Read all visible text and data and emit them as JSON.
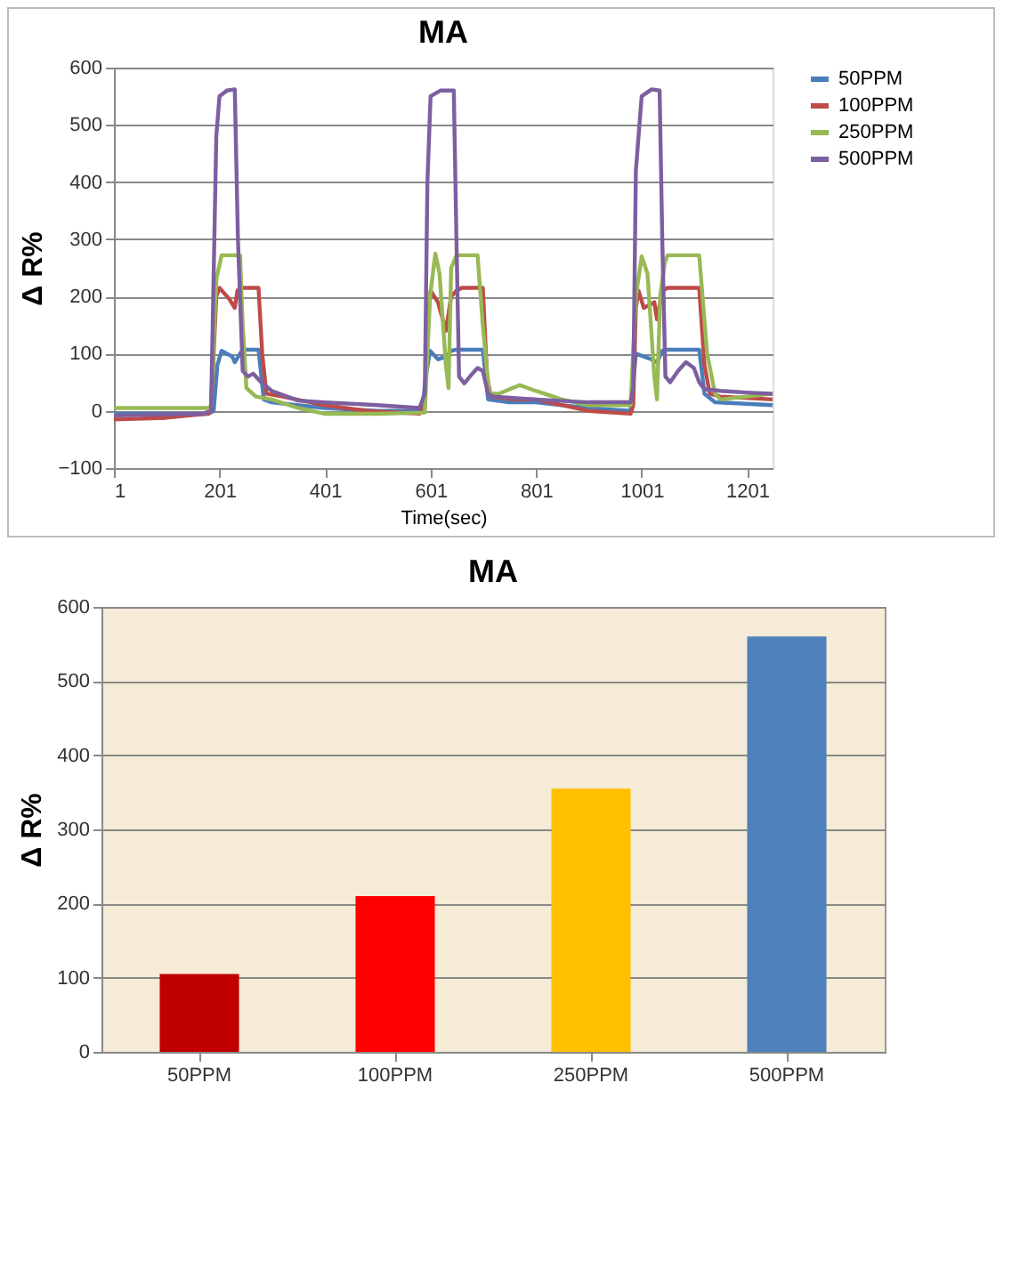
{
  "chart_data": [
    {
      "type": "line",
      "title": "MA",
      "xlabel": "Time(sec)",
      "ylabel": "Δ R%",
      "xlim": [
        1,
        1249
      ],
      "xticks": [
        1,
        201,
        401,
        601,
        801,
        1001,
        1201
      ],
      "ylim": [
        -100,
        600
      ],
      "yticks": [
        -100,
        0,
        100,
        200,
        300,
        400,
        500,
        600
      ],
      "grid": "y",
      "legend": "right",
      "marker": "none",
      "series": [
        {
          "name": "50PPM",
          "color": "#4a7ebb",
          "x": [
            1,
            180,
            190,
            197,
            205,
            225,
            230,
            240,
            245,
            275,
            285,
            300,
            400,
            500,
            585,
            592,
            600,
            615,
            630,
            640,
            650,
            700,
            710,
            750,
            800,
            900,
            980,
            990,
            1005,
            1020,
            1030,
            1040,
            1050,
            1110,
            1120,
            1140,
            1249
          ],
          "values": [
            -5,
            -5,
            0,
            80,
            105,
            95,
            85,
            100,
            107,
            107,
            20,
            15,
            5,
            0,
            0,
            60,
            105,
            90,
            95,
            105,
            107,
            107,
            20,
            15,
            15,
            5,
            0,
            100,
            95,
            90,
            85,
            105,
            107,
            107,
            30,
            15,
            10
          ]
        },
        {
          "name": "100PPM",
          "color": "#be4b48",
          "x": [
            1,
            100,
            180,
            185,
            195,
            201,
            220,
            230,
            235,
            240,
            275,
            282,
            290,
            320,
            400,
            480,
            580,
            590,
            595,
            601,
            615,
            630,
            640,
            650,
            660,
            700,
            708,
            715,
            760,
            800,
            900,
            980,
            985,
            990,
            995,
            1005,
            1025,
            1030,
            1040,
            1050,
            1110,
            1120,
            1130,
            1150,
            1249
          ],
          "values": [
            -15,
            -12,
            -5,
            0,
            200,
            215,
            195,
            180,
            210,
            215,
            215,
            100,
            30,
            25,
            10,
            0,
            -5,
            10,
            150,
            210,
            190,
            140,
            200,
            210,
            215,
            215,
            60,
            25,
            20,
            20,
            0,
            -5,
            10,
            180,
            210,
            180,
            190,
            160,
            210,
            215,
            215,
            80,
            30,
            25,
            20
          ]
        },
        {
          "name": "250PPM",
          "color": "#98b954",
          "x": [
            1,
            100,
            180,
            185,
            195,
            205,
            240,
            245,
            252,
            270,
            300,
            350,
            400,
            500,
            590,
            600,
            610,
            618,
            630,
            635,
            640,
            650,
            690,
            700,
            712,
            730,
            770,
            800,
            850,
            900,
            980,
            990,
            1001,
            1012,
            1025,
            1030,
            1036,
            1045,
            1050,
            1110,
            1125,
            1140,
            1150,
            1200,
            1249
          ],
          "values": [
            5,
            5,
            5,
            10,
            230,
            272,
            272,
            150,
            40,
            25,
            20,
            5,
            -5,
            -5,
            -3,
            200,
            275,
            240,
            80,
            40,
            250,
            272,
            272,
            150,
            30,
            30,
            45,
            35,
            20,
            10,
            10,
            200,
            270,
            240,
            60,
            20,
            200,
            260,
            272,
            272,
            100,
            30,
            20,
            25,
            30
          ]
        },
        {
          "name": "500PPM",
          "color": "#7d5fa0",
          "x": [
            1,
            170,
            185,
            195,
            201,
            215,
            230,
            236,
            245,
            255,
            265,
            280,
            300,
            350,
            400,
            500,
            580,
            590,
            595,
            601,
            620,
            645,
            650,
            655,
            665,
            680,
            690,
            700,
            710,
            720,
            800,
            900,
            980,
            985,
            990,
            1001,
            1020,
            1035,
            1040,
            1046,
            1055,
            1070,
            1085,
            1100,
            1110,
            1120,
            1150,
            1200,
            1249
          ],
          "values": [
            -8,
            -5,
            0,
            480,
            550,
            560,
            562,
            300,
            70,
            60,
            65,
            50,
            35,
            18,
            15,
            10,
            5,
            30,
            400,
            550,
            560,
            560,
            300,
            60,
            48,
            65,
            75,
            70,
            30,
            25,
            20,
            15,
            15,
            40,
            420,
            550,
            562,
            560,
            300,
            60,
            50,
            70,
            85,
            75,
            50,
            38,
            35,
            32,
            30
          ]
        }
      ]
    },
    {
      "type": "bar",
      "title": "MA",
      "ylabel": "Δ R%",
      "categories": [
        "50PPM",
        "100PPM",
        "250PPM",
        "500PPM"
      ],
      "values": [
        105,
        210,
        355,
        560
      ],
      "colors": [
        "#c00000",
        "#ff0000",
        "#ffc000",
        "#4f81bd"
      ],
      "ylim": [
        0,
        600
      ],
      "yticks": [
        0,
        100,
        200,
        300,
        400,
        500,
        600
      ],
      "grid": "y"
    }
  ]
}
